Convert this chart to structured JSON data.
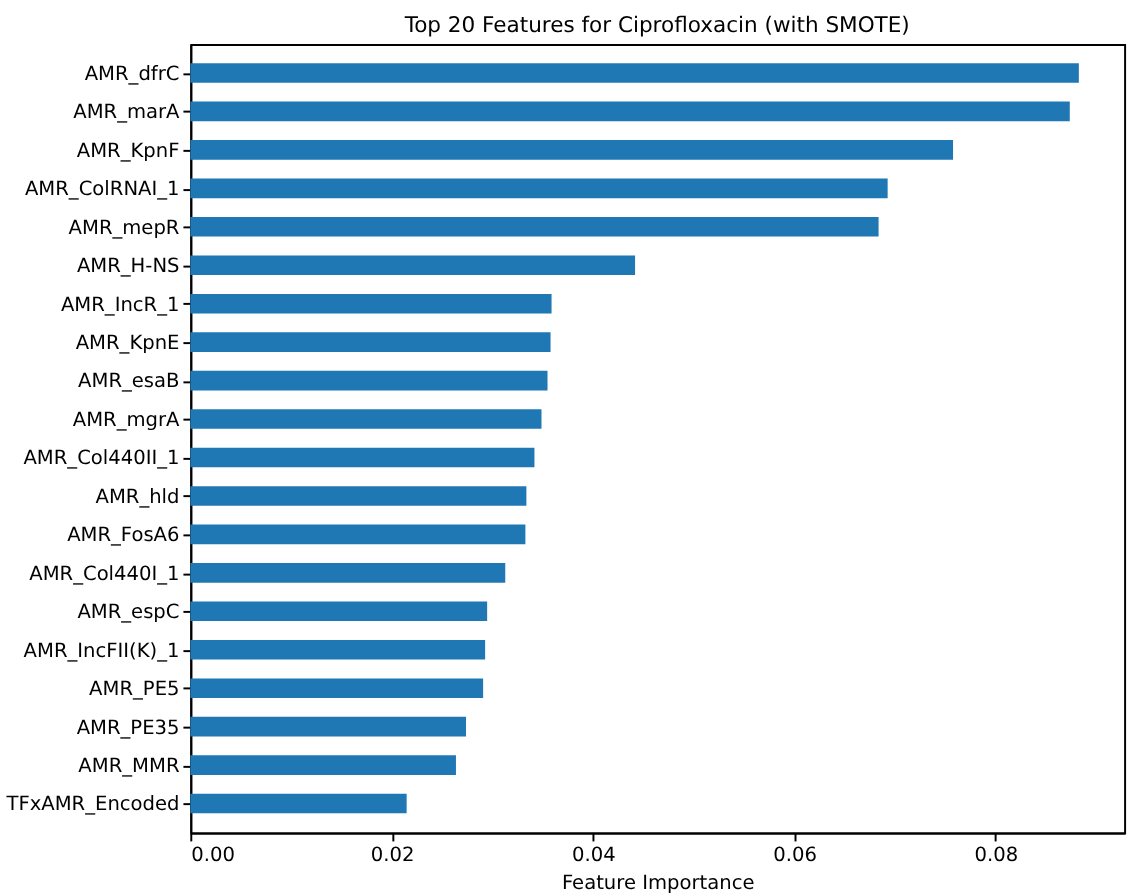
{
  "chart_data": {
    "type": "bar",
    "orientation": "horizontal",
    "title": "Top 20 Features for Ciprofloxacin (with SMOTE)",
    "xlabel": "Feature Importance",
    "categories": [
      "AMR_dfrC",
      "AMR_marA",
      "AMR_KpnF",
      "AMR_ColRNAI_1",
      "AMR_mepR",
      "AMR_H-NS",
      "AMR_IncR_1",
      "AMR_KpnE",
      "AMR_esaB",
      "AMR_mgrA",
      "AMR_Col440II_1",
      "AMR_hld",
      "AMR_FosA6",
      "AMR_Col440I_1",
      "AMR_espC",
      "AMR_IncFII(K)_1",
      "AMR_PE5",
      "AMR_PE35",
      "AMR_MMR",
      "TFxAMR_Encoded"
    ],
    "values": [
      0.0883,
      0.0874,
      0.0758,
      0.0693,
      0.0684,
      0.0442,
      0.0359,
      0.0358,
      0.0355,
      0.0349,
      0.0342,
      0.0334,
      0.0333,
      0.0313,
      0.0295,
      0.0293,
      0.0291,
      0.0274,
      0.0264,
      0.0215
    ],
    "color": "#1f77b4",
    "xlim": [
      0,
      0.0928
    ],
    "xticks": [
      {
        "value": 0,
        "label": "0.00"
      },
      0.02,
      0.04,
      0.06,
      0.08
    ],
    "grid": false
  }
}
